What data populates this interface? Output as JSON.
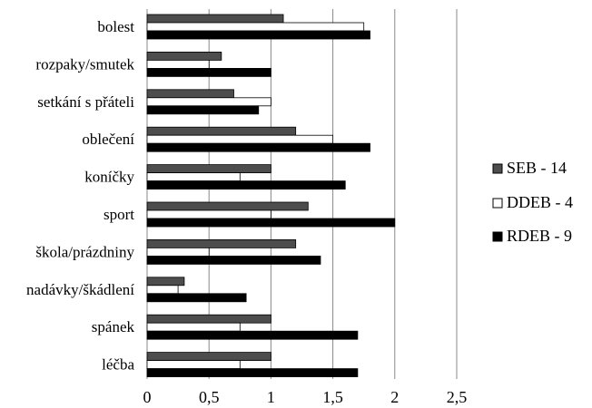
{
  "chart_data": {
    "type": "bar",
    "orientation": "horizontal",
    "categories": [
      "bolest",
      "rozpaky/smutek",
      "setkání s přáteli",
      "oblečení",
      "koníčky",
      "sport",
      "škola/prázdniny",
      "nadávky/škádlení",
      "spánek",
      "léčba"
    ],
    "series": [
      {
        "name": "SEB - 14",
        "color": "#4d4d4d",
        "values": [
          1.1,
          0.6,
          0.7,
          1.2,
          1.0,
          1.3,
          1.2,
          0.3,
          1.0,
          1.0
        ]
      },
      {
        "name": "DDEB - 4",
        "color": "#ffffff",
        "values": [
          1.75,
          0.5,
          1.0,
          1.5,
          0.75,
          1.0,
          0.5,
          0.25,
          0.75,
          0.75
        ]
      },
      {
        "name": "RDEB - 9",
        "color": "#000000",
        "values": [
          1.8,
          1.0,
          0.9,
          1.8,
          1.6,
          2.0,
          1.4,
          0.8,
          1.7,
          1.7
        ]
      }
    ],
    "xlim": [
      0,
      2.5
    ],
    "x_ticks": [
      "0",
      "0,5",
      "1",
      "1,5",
      "2",
      "2,5"
    ],
    "grid": "vertical",
    "legend_position": "right"
  }
}
